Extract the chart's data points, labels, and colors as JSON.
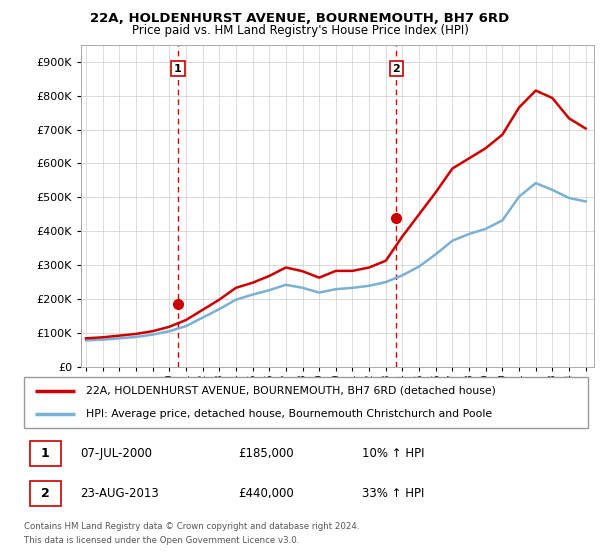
{
  "title": "22A, HOLDENHURST AVENUE, BOURNEMOUTH, BH7 6RD",
  "subtitle": "Price paid vs. HM Land Registry's House Price Index (HPI)",
  "property_label": "22A, HOLDENHURST AVENUE, BOURNEMOUTH, BH7 6RD (detached house)",
  "hpi_label": "HPI: Average price, detached house, Bournemouth Christchurch and Poole",
  "sale1_date": "07-JUL-2000",
  "sale1_price": 185000,
  "sale1_hpi_pct": "10% ↑ HPI",
  "sale2_date": "23-AUG-2013",
  "sale2_price": 440000,
  "sale2_hpi_pct": "33% ↑ HPI",
  "footer": "Contains HM Land Registry data © Crown copyright and database right 2024.\nThis data is licensed under the Open Government Licence v3.0.",
  "property_color": "#cc0000",
  "hpi_color": "#7ab0d4",
  "sale_vline_color": "#cc0000",
  "grid_color": "#cccccc",
  "ylim": [
    0,
    950000
  ],
  "yticks": [
    0,
    100000,
    200000,
    300000,
    400000,
    500000,
    600000,
    700000,
    800000,
    900000
  ],
  "xlim_start": 1994.7,
  "xlim_end": 2025.5,
  "sale1_x": 2000.52,
  "sale2_x": 2013.64,
  "hpi_years": [
    1995,
    1996,
    1997,
    1998,
    1999,
    2000,
    2001,
    2002,
    2003,
    2004,
    2005,
    2006,
    2007,
    2008,
    2009,
    2010,
    2011,
    2012,
    2013,
    2014,
    2015,
    2016,
    2017,
    2018,
    2019,
    2020,
    2021,
    2022,
    2023,
    2024,
    2025
  ],
  "hpi_values": [
    78000,
    80000,
    84000,
    88000,
    95000,
    105000,
    120000,
    145000,
    170000,
    198000,
    213000,
    226000,
    242000,
    233000,
    219000,
    229000,
    233000,
    239000,
    250000,
    270000,
    296000,
    332000,
    372000,
    392000,
    407000,
    432000,
    502000,
    542000,
    522000,
    498000,
    488000
  ],
  "prop_years": [
    1995,
    1996,
    1997,
    1998,
    1999,
    2000,
    2001,
    2002,
    2003,
    2004,
    2005,
    2006,
    2007,
    2008,
    2009,
    2010,
    2011,
    2012,
    2013,
    2014,
    2015,
    2016,
    2017,
    2018,
    2019,
    2020,
    2021,
    2022,
    2023,
    2024,
    2025
  ],
  "prop_values": [
    84000,
    87000,
    92000,
    97000,
    105000,
    118000,
    138000,
    168000,
    198000,
    233000,
    248000,
    268000,
    293000,
    282000,
    263000,
    283000,
    283000,
    293000,
    313000,
    385000,
    450000,
    515000,
    585000,
    615000,
    645000,
    685000,
    765000,
    815000,
    793000,
    733000,
    703000
  ]
}
